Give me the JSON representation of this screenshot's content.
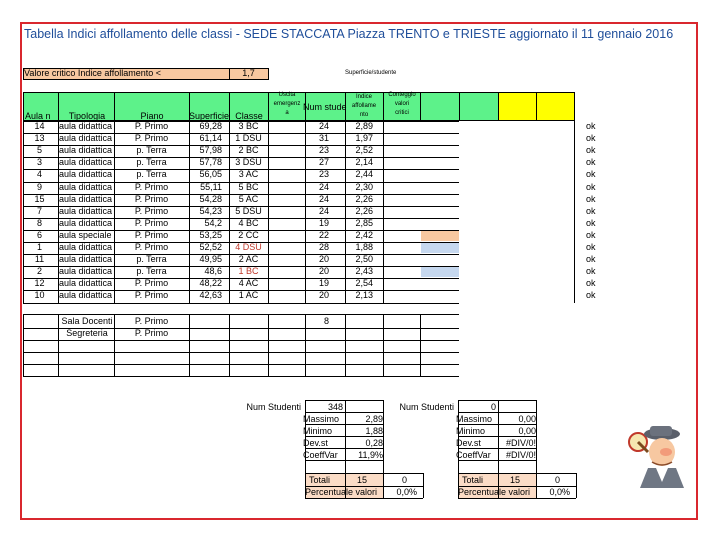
{
  "title": "Tabella  Indici affollamento delle classi  - SEDE STACCATA Piazza TRENTO e TRIESTE  aggiornato il 11 gennaio 2016",
  "critical": {
    "label": "Valore critico Indice affollamento <",
    "value": "1,7",
    "note": "Superficie/studente"
  },
  "headers": {
    "aula": "Aula n",
    "tipologia": "Tipologia",
    "piano": "Piano",
    "superficie": "Superficie",
    "classe": "Classe",
    "uscita": [
      "Uscita",
      "emergenz",
      "a"
    ],
    "num_studenti": "Num studen",
    "indice": [
      "Indice",
      "affollame",
      "nto"
    ],
    "conteggio": [
      "Conteggio",
      "valori",
      "critici"
    ]
  },
  "rows": [
    {
      "aula": "14",
      "tipo": "aula didattica",
      "piano": "P. Primo",
      "sup": "69,28",
      "classe": "3 BC",
      "num": "24",
      "ind": "2,89",
      "flag": "",
      "ok": "ok"
    },
    {
      "aula": "13",
      "tipo": "aula didattica",
      "piano": "P. Primo",
      "sup": "61,14",
      "classe": "1 DSU",
      "num": "31",
      "ind": "1,97",
      "flag": "",
      "ok": "ok"
    },
    {
      "aula": "5",
      "tipo": "aula didattica",
      "piano": "p. Terra",
      "sup": "57,98",
      "classe": "2 BC",
      "num": "23",
      "ind": "2,52",
      "flag": "",
      "ok": "ok"
    },
    {
      "aula": "3",
      "tipo": "aula didattica",
      "piano": "p. Terra",
      "sup": "57,78",
      "classe": "3 DSU",
      "num": "27",
      "ind": "2,14",
      "flag": "",
      "ok": "ok"
    },
    {
      "aula": "4",
      "tipo": "aula didattica",
      "piano": "p. Terra",
      "sup": "56,05",
      "classe": "3 AC",
      "num": "23",
      "ind": "2,44",
      "flag": "",
      "ok": "ok"
    },
    {
      "aula": "9",
      "tipo": "aula didattica",
      "piano": "P. Primo",
      "sup": "55,11",
      "classe": "5 BC",
      "num": "24",
      "ind": "2,30",
      "flag": "",
      "ok": "ok"
    },
    {
      "aula": "15",
      "tipo": "aula didattica",
      "piano": "P. Primo",
      "sup": "54,28",
      "classe": "5 AC",
      "num": "24",
      "ind": "2,26",
      "flag": "",
      "ok": "ok"
    },
    {
      "aula": "7",
      "tipo": "aula didattica",
      "piano": "P. Primo",
      "sup": "54,23",
      "classe": "5 DSU",
      "num": "24",
      "ind": "2,26",
      "flag": "",
      "ok": "ok"
    },
    {
      "aula": "8",
      "tipo": "aula didattica",
      "piano": "P. Primo",
      "sup": "54,2",
      "classe": "4 BC",
      "num": "19",
      "ind": "2,85",
      "flag": "",
      "ok": "ok"
    },
    {
      "aula": "6",
      "tipo": "aula speciale",
      "piano": "P. Primo",
      "sup": "53,25",
      "classe": "2 CC",
      "num": "22",
      "ind": "2,42",
      "flag": "orange",
      "ok": "ok"
    },
    {
      "aula": "1",
      "tipo": "aula didattica",
      "piano": "P. Primo",
      "sup": "52,52",
      "classe": "4 DSU",
      "num": "28",
      "ind": "1,88",
      "flag": "blue",
      "ok": "ok"
    },
    {
      "aula": "11",
      "tipo": "aula didattica",
      "piano": "p. Terra",
      "sup": "49,95",
      "classe": "2 AC",
      "num": "20",
      "ind": "2,50",
      "flag": "",
      "ok": "ok"
    },
    {
      "aula": "2",
      "tipo": "aula didattica",
      "piano": "p. Terra",
      "sup": "48,6",
      "classe": "1 BC",
      "num": "20",
      "ind": "2,43",
      "flag": "blue",
      "ok": "ok"
    },
    {
      "aula": "12",
      "tipo": "aula didattica",
      "piano": "P. Primo",
      "sup": "48,22",
      "classe": "4 AC",
      "num": "19",
      "ind": "2,54",
      "flag": "",
      "ok": "ok"
    },
    {
      "aula": "10",
      "tipo": "aula didattica",
      "piano": "P. Primo",
      "sup": "42,63",
      "classe": "1 AC",
      "num": "20",
      "ind": "2,13",
      "flag": "",
      "ok": "ok"
    }
  ],
  "extra_rows": [
    {
      "tipo": "Sala Docenti",
      "piano": "P. Primo",
      "num": "8"
    },
    {
      "tipo": "Segreteria",
      "piano": "P. Primo",
      "num": ""
    }
  ],
  "stats_left": {
    "num_label": "Num Studenti",
    "num_value": "348",
    "max_label": "Massimo",
    "max_value": "2,89",
    "min_label": "Minimo",
    "min_value": "1,88",
    "dev_label": "Dev.st",
    "dev_value": "0,28",
    "coeff_label": "CoeffVar",
    "coeff_value": "11,9%",
    "totali_label": "Totali",
    "totali_value": "15",
    "totali_count": "0",
    "perc_label": "Percentuale valori",
    "perc_value": "0,0%"
  },
  "stats_right": {
    "num_label": "Num Studenti",
    "num_value": "0",
    "max_label": "Massimo",
    "max_value": "0,00",
    "min_label": "Minimo",
    "min_value": "0,00",
    "dev_label": "Dev.st",
    "dev_value": "#DIV/0!",
    "coeff_label": "CoeffVar",
    "coeff_value": "#DIV/0!",
    "totali_label": "Totali",
    "totali_value": "15",
    "totali_count": "0",
    "perc_label": "Percentuale valori",
    "perc_value": "0,0%"
  },
  "colors": {
    "frame": "#d9272e",
    "title": "#1f4e9a",
    "header_green": "#5df28a",
    "header_yellow": "#ffff00",
    "orange": "#f8c8a0",
    "blue": "#c6d8ef"
  },
  "icons": {
    "mascot": "inspector-gadget-icon"
  }
}
